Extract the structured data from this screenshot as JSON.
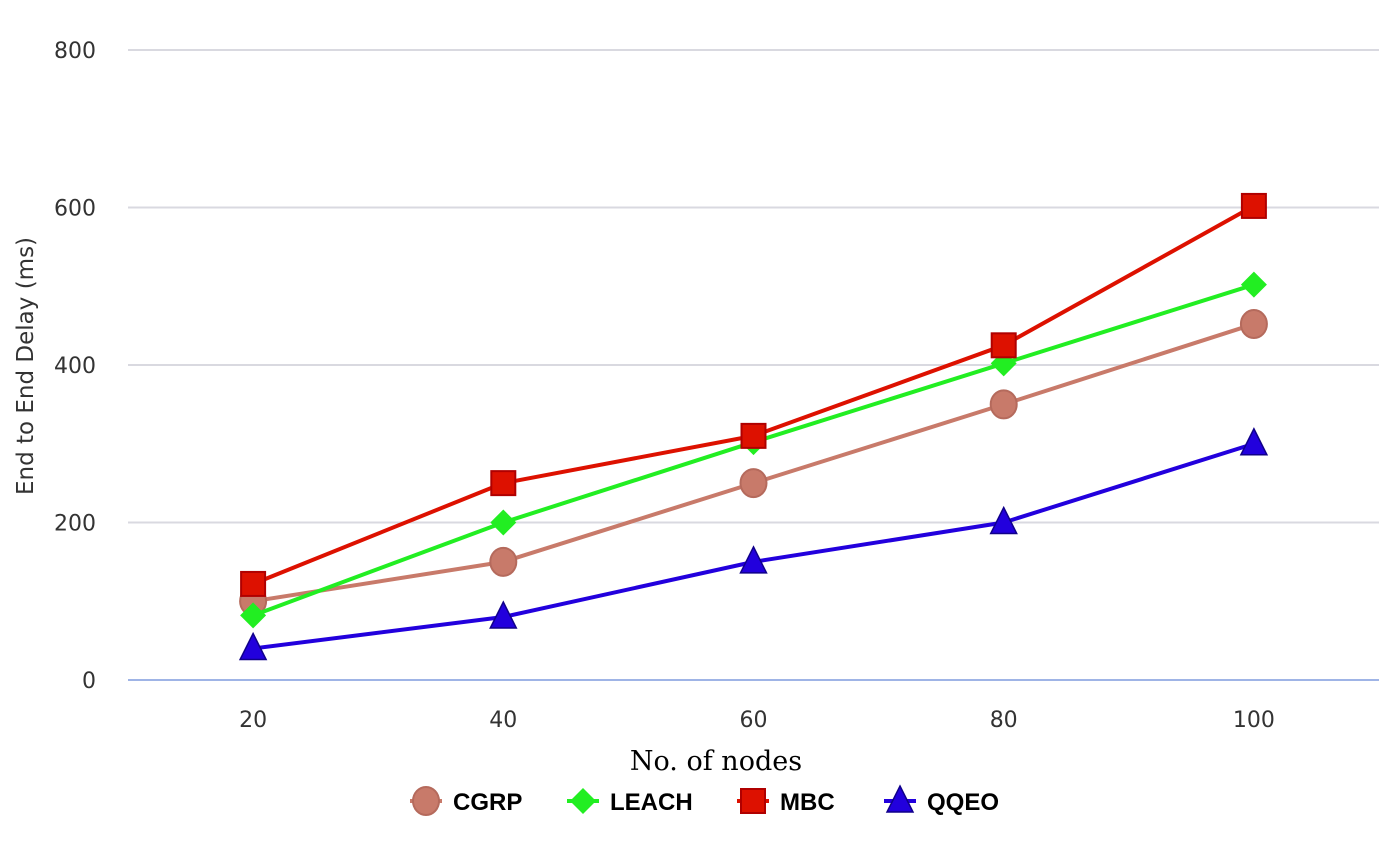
{
  "chart_data": {
    "type": "line",
    "x": [
      20,
      40,
      60,
      80,
      100
    ],
    "xlabel": "No. of nodes",
    "ylabel": "End to End Delay (ms)",
    "xlim": [
      10,
      110
    ],
    "ylim": [
      0,
      800
    ],
    "yticks": [
      0,
      200,
      400,
      600,
      800
    ],
    "xticks": [
      20,
      40,
      60,
      80,
      100
    ],
    "grid": true,
    "legend_position": "bottom",
    "series": [
      {
        "name": "CGRP",
        "values": [
          100,
          150,
          250,
          350,
          452
        ],
        "color": "#C87A6A",
        "marker": "circle"
      },
      {
        "name": "LEACH",
        "values": [
          82,
          200,
          302,
          402,
          502
        ],
        "color": "#22EE22",
        "marker": "diamond"
      },
      {
        "name": "MBC",
        "values": [
          122,
          250,
          310,
          425,
          602
        ],
        "color": "#DD1100",
        "marker": "square"
      },
      {
        "name": "QQEO",
        "values": [
          40,
          80,
          150,
          200,
          300
        ],
        "color": "#2200DD",
        "marker": "triangle"
      }
    ]
  }
}
